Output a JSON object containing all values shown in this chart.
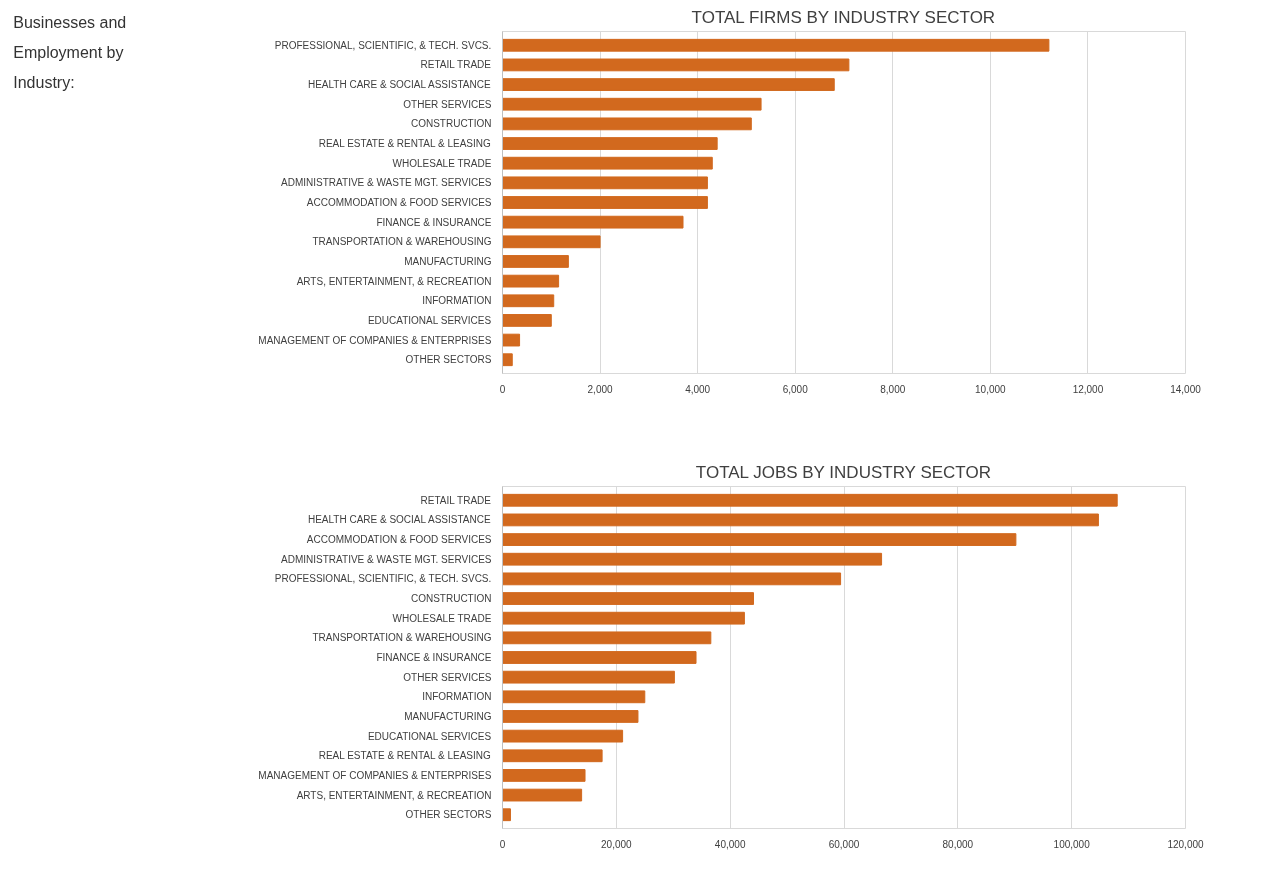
{
  "chart_data": [
    {
      "type": "other",
      "title": "Businesses and Employment by Industry:"
    },
    {
      "type": "bar",
      "orientation": "horizontal",
      "title": "TOTAL FIRMS BY INDUSTRY SECTOR",
      "color": "#d2691e",
      "grid": "x",
      "xlim": [
        0,
        14000
      ],
      "xticks": [
        0,
        {
          "value": 2000,
          "label": "2,000"
        },
        {
          "value": 4000,
          "label": "4,000"
        },
        {
          "value": 6000,
          "label": "6,000"
        },
        {
          "value": 8000,
          "label": "8,000"
        },
        {
          "value": 10000,
          "label": "10,000"
        },
        {
          "value": 12000,
          "label": "12,000"
        },
        {
          "value": 14000,
          "label": "14,000"
        }
      ],
      "categories": [
        "PROFESSIONAL, SCIENTIFIC, & TECH. SVCS.",
        "RETAIL TRADE",
        "HEALTH CARE & SOCIAL ASSISTANCE",
        "OTHER SERVICES",
        "CONSTRUCTION",
        "REAL ESTATE & RENTAL & LEASING",
        "WHOLESALE TRADE",
        "ADMINISTRATIVE & WASTE MGT. SERVICES",
        "ACCOMMODATION & FOOD SERVICES",
        "FINANCE & INSURANCE",
        "TRANSPORTATION & WAREHOUSING",
        "MANUFACTURING",
        "ARTS, ENTERTAINMENT, & RECREATION",
        "INFORMATION",
        "EDUCATIONAL SERVICES",
        "MANAGEMENT OF COMPANIES & ENTERPRISES",
        "OTHER SECTORS"
      ],
      "values": [
        11200,
        7100,
        6800,
        5300,
        5100,
        4400,
        4300,
        4200,
        4200,
        3700,
        2000,
        1350,
        1150,
        1050,
        1000,
        350,
        200
      ]
    },
    {
      "type": "bar",
      "orientation": "horizontal",
      "title": "TOTAL JOBS BY INDUSTRY SECTOR",
      "color": "#d2691e",
      "grid": "x",
      "xlim": [
        0,
        120000
      ],
      "xticks": [
        0,
        {
          "value": 20000,
          "label": "20,000"
        },
        {
          "value": 40000,
          "label": "40,000"
        },
        {
          "value": 60000,
          "label": "60,000"
        },
        {
          "value": 80000,
          "label": "80,000"
        },
        {
          "value": 100000,
          "label": "100,000"
        },
        {
          "value": 120000,
          "label": "120,000"
        }
      ],
      "categories": [
        "RETAIL TRADE",
        "HEALTH CARE & SOCIAL ASSISTANCE",
        "ACCOMMODATION & FOOD SERVICES",
        "ADMINISTRATIVE & WASTE MGT. SERVICES",
        "PROFESSIONAL, SCIENTIFIC, & TECH. SVCS.",
        "CONSTRUCTION",
        "WHOLESALE TRADE",
        "TRANSPORTATION & WAREHOUSING",
        "FINANCE & INSURANCE",
        "OTHER SERVICES",
        "INFORMATION",
        "MANUFACTURING",
        "EDUCATIONAL SERVICES",
        "REAL ESTATE & RENTAL & LEASING",
        "MANAGEMENT OF COMPANIES & ENTERPRISES",
        "ARTS, ENTERTAINMENT, & RECREATION",
        "OTHER SECTORS"
      ],
      "values": [
        108000,
        104700,
        90200,
        66600,
        59400,
        44100,
        42500,
        36600,
        34000,
        30200,
        25000,
        23800,
        21100,
        17500,
        14500,
        13900,
        1400
      ]
    }
  ]
}
